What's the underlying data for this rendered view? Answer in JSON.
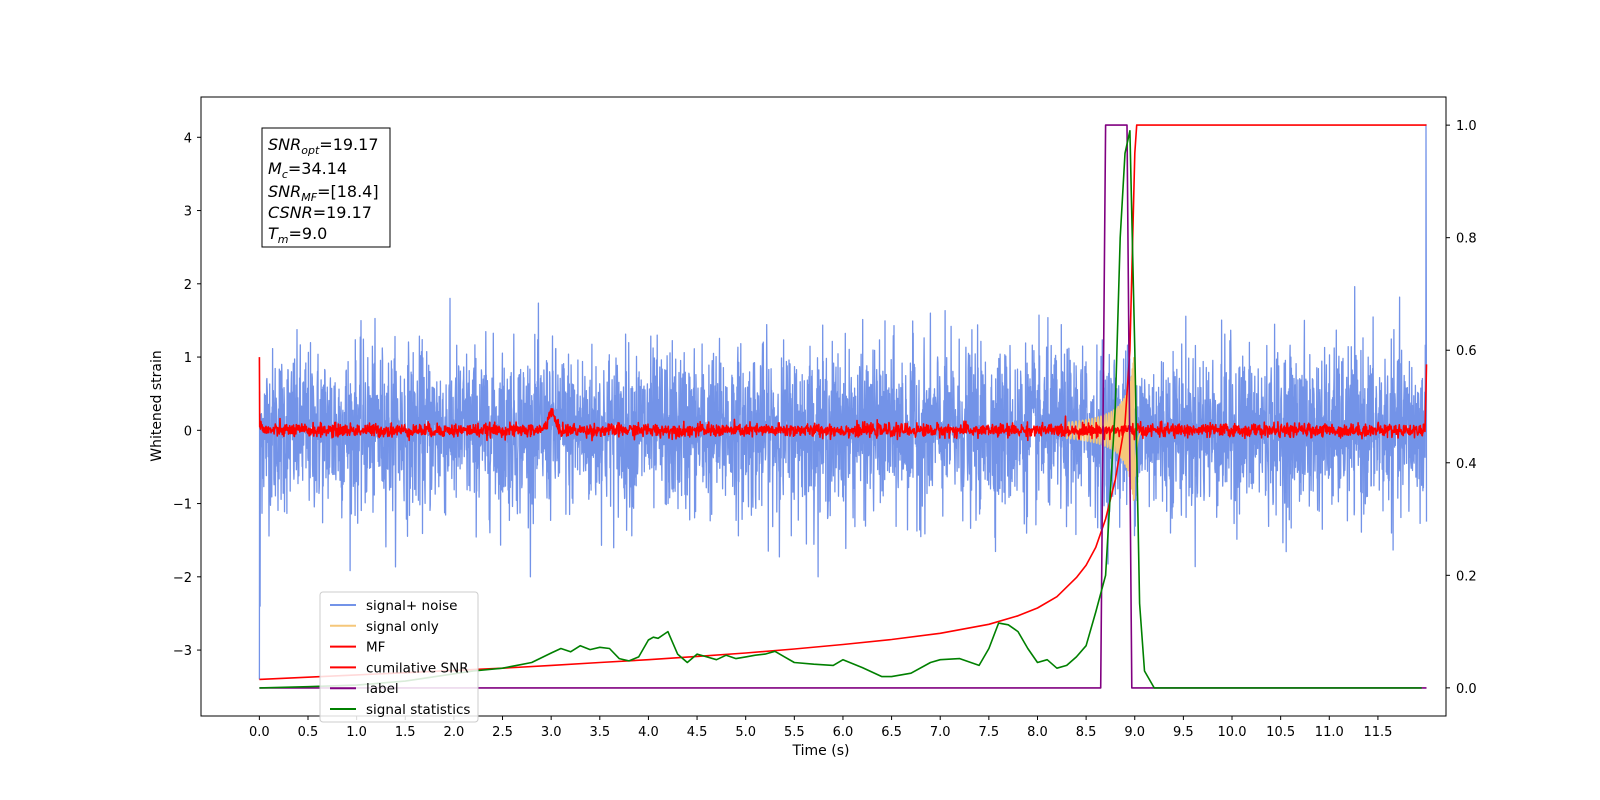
{
  "chart_data": {
    "type": "line",
    "xlabel": "Time (s)",
    "ylabel": "Whitened strain",
    "xlim": [
      -0.6,
      12.2
    ],
    "ylim": [
      -3.9,
      4.55
    ],
    "ylim_right": [
      -0.05,
      1.05
    ],
    "x_ticks": [
      "0.0",
      "0.5",
      "1.0",
      "1.5",
      "2.0",
      "2.5",
      "3.0",
      "3.5",
      "4.0",
      "4.5",
      "5.0",
      "5.5",
      "6.0",
      "6.5",
      "7.0",
      "7.5",
      "8.0",
      "8.5",
      "9.0",
      "9.5",
      "10.0",
      "10.5",
      "11.0",
      "11.5"
    ],
    "y_ticks": [
      "4",
      "3",
      "2",
      "1",
      "0",
      "−1",
      "−2",
      "−3"
    ],
    "y_ticks_right": [
      "1.0",
      "0.8",
      "0.6",
      "0.4",
      "0.2",
      "0.0"
    ],
    "legend_position": "lower-left",
    "info_box": {
      "snr_opt": {
        "var": "SNR",
        "sub": "opt",
        "value": "=19.17"
      },
      "mc": {
        "var": "M",
        "sub": "c",
        "value": "=34.14"
      },
      "snr_mf": {
        "var": "SNR",
        "sub": "MF",
        "value": "=[18.4]"
      },
      "csnr": {
        "var": "CSNR",
        "value": "=19.17"
      },
      "tm": {
        "var": "T",
        "sub": "m",
        "value": "=9.0"
      }
    },
    "series": [
      {
        "name": "signal+ noise",
        "color": "#7393e8",
        "axis": "left",
        "kind": "noise",
        "x_range": [
          0.0,
          12.0
        ],
        "amplitude": 1.0,
        "range": [
          -2.0,
          2.2
        ]
      },
      {
        "name": "signal only",
        "color": "#f5c77a",
        "axis": "left",
        "kind": "chirp",
        "x_range": [
          8.3,
          9.1
        ],
        "peak_amplitude": 1.25
      },
      {
        "name": "MF",
        "color": "#ff0000",
        "axis": "left",
        "kind": "noise",
        "x_range": [
          0.0,
          12.0
        ],
        "amplitude": 0.05,
        "bump_at": 3.0,
        "bump_height": 0.25
      },
      {
        "name": "cumilative SNR",
        "color": "#ff0000",
        "axis": "right",
        "x": [
          0.0,
          0.5,
          1.0,
          1.5,
          2.0,
          2.5,
          3.0,
          3.5,
          4.0,
          4.5,
          5.0,
          5.5,
          6.0,
          6.5,
          7.0,
          7.5,
          7.8,
          8.0,
          8.2,
          8.4,
          8.5,
          8.6,
          8.7,
          8.8,
          8.9,
          8.95,
          9.0,
          9.02,
          12.0
        ],
        "y": [
          0.015,
          0.019,
          0.023,
          0.027,
          0.031,
          0.035,
          0.04,
          0.045,
          0.05,
          0.056,
          0.062,
          0.069,
          0.077,
          0.086,
          0.097,
          0.113,
          0.128,
          0.142,
          0.162,
          0.196,
          0.218,
          0.25,
          0.3,
          0.37,
          0.47,
          0.6,
          0.95,
          1.0,
          1.0
        ]
      },
      {
        "name": "label",
        "color": "#800080",
        "axis": "right",
        "x": [
          0.0,
          8.65,
          8.7,
          8.92,
          8.97,
          12.0
        ],
        "y": [
          0.0,
          0.0,
          1.0,
          1.0,
          0.0,
          0.0
        ]
      },
      {
        "name": "signal statistics",
        "color": "#008000",
        "axis": "right",
        "x": [
          0.0,
          0.5,
          1.0,
          1.5,
          2.0,
          2.2,
          2.5,
          2.8,
          3.0,
          3.1,
          3.2,
          3.3,
          3.4,
          3.5,
          3.6,
          3.7,
          3.8,
          3.9,
          4.0,
          4.05,
          4.1,
          4.2,
          4.3,
          4.4,
          4.5,
          4.6,
          4.7,
          4.8,
          4.9,
          5.0,
          5.1,
          5.2,
          5.3,
          5.4,
          5.5,
          5.7,
          5.9,
          6.0,
          6.2,
          6.4,
          6.5,
          6.7,
          6.9,
          7.0,
          7.2,
          7.4,
          7.5,
          7.6,
          7.7,
          7.8,
          7.9,
          8.0,
          8.1,
          8.2,
          8.3,
          8.4,
          8.5,
          8.6,
          8.7,
          8.8,
          8.85,
          8.9,
          8.95,
          9.0,
          9.05,
          9.1,
          9.2,
          11.95
        ],
        "y": [
          0.0,
          0.002,
          0.005,
          0.012,
          0.025,
          0.03,
          0.035,
          0.045,
          0.062,
          0.07,
          0.064,
          0.075,
          0.068,
          0.072,
          0.07,
          0.052,
          0.048,
          0.055,
          0.085,
          0.09,
          0.088,
          0.1,
          0.06,
          0.045,
          0.06,
          0.055,
          0.05,
          0.058,
          0.052,
          0.055,
          0.058,
          0.06,
          0.065,
          0.055,
          0.045,
          0.042,
          0.04,
          0.05,
          0.036,
          0.02,
          0.02,
          0.026,
          0.045,
          0.05,
          0.052,
          0.04,
          0.07,
          0.115,
          0.112,
          0.1,
          0.07,
          0.045,
          0.05,
          0.035,
          0.04,
          0.055,
          0.075,
          0.135,
          0.2,
          0.5,
          0.8,
          0.95,
          0.99,
          0.6,
          0.15,
          0.03,
          0.0,
          0.0
        ]
      }
    ]
  }
}
